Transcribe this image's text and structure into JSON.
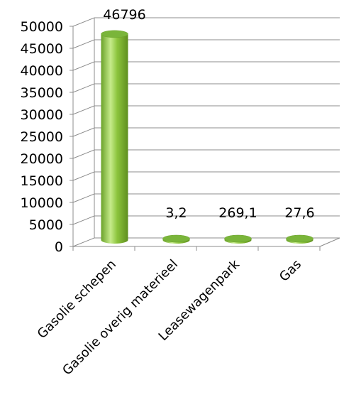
{
  "chart_data": {
    "type": "bar",
    "title": "",
    "xlabel": "",
    "ylabel": "",
    "categories": [
      "Gasolie schepen",
      "Gasolie overig materieel",
      "Leasewagenpark",
      "Gas"
    ],
    "values": [
      46796,
      3.2,
      269.1,
      27.6
    ],
    "data_labels": [
      "46796",
      "3,2",
      "269,1",
      "27,6"
    ],
    "ylim": [
      0,
      50000
    ],
    "yticks": [
      0,
      5000,
      10000,
      15000,
      20000,
      25000,
      30000,
      35000,
      40000,
      45000,
      50000
    ],
    "ytick_labels": [
      "0",
      "5000",
      "10000",
      "15000",
      "20000",
      "25000",
      "30000",
      "35000",
      "40000",
      "45000",
      "50000"
    ],
    "grid": true,
    "legend": "none",
    "style": "3d-cylinder",
    "colors": {
      "bar": "#8cc43c",
      "bar_dark": "#5f8f1f",
      "bar_light": "#c6eb8a",
      "top": "#7ab53a",
      "grid": "#8c8c8c"
    }
  }
}
